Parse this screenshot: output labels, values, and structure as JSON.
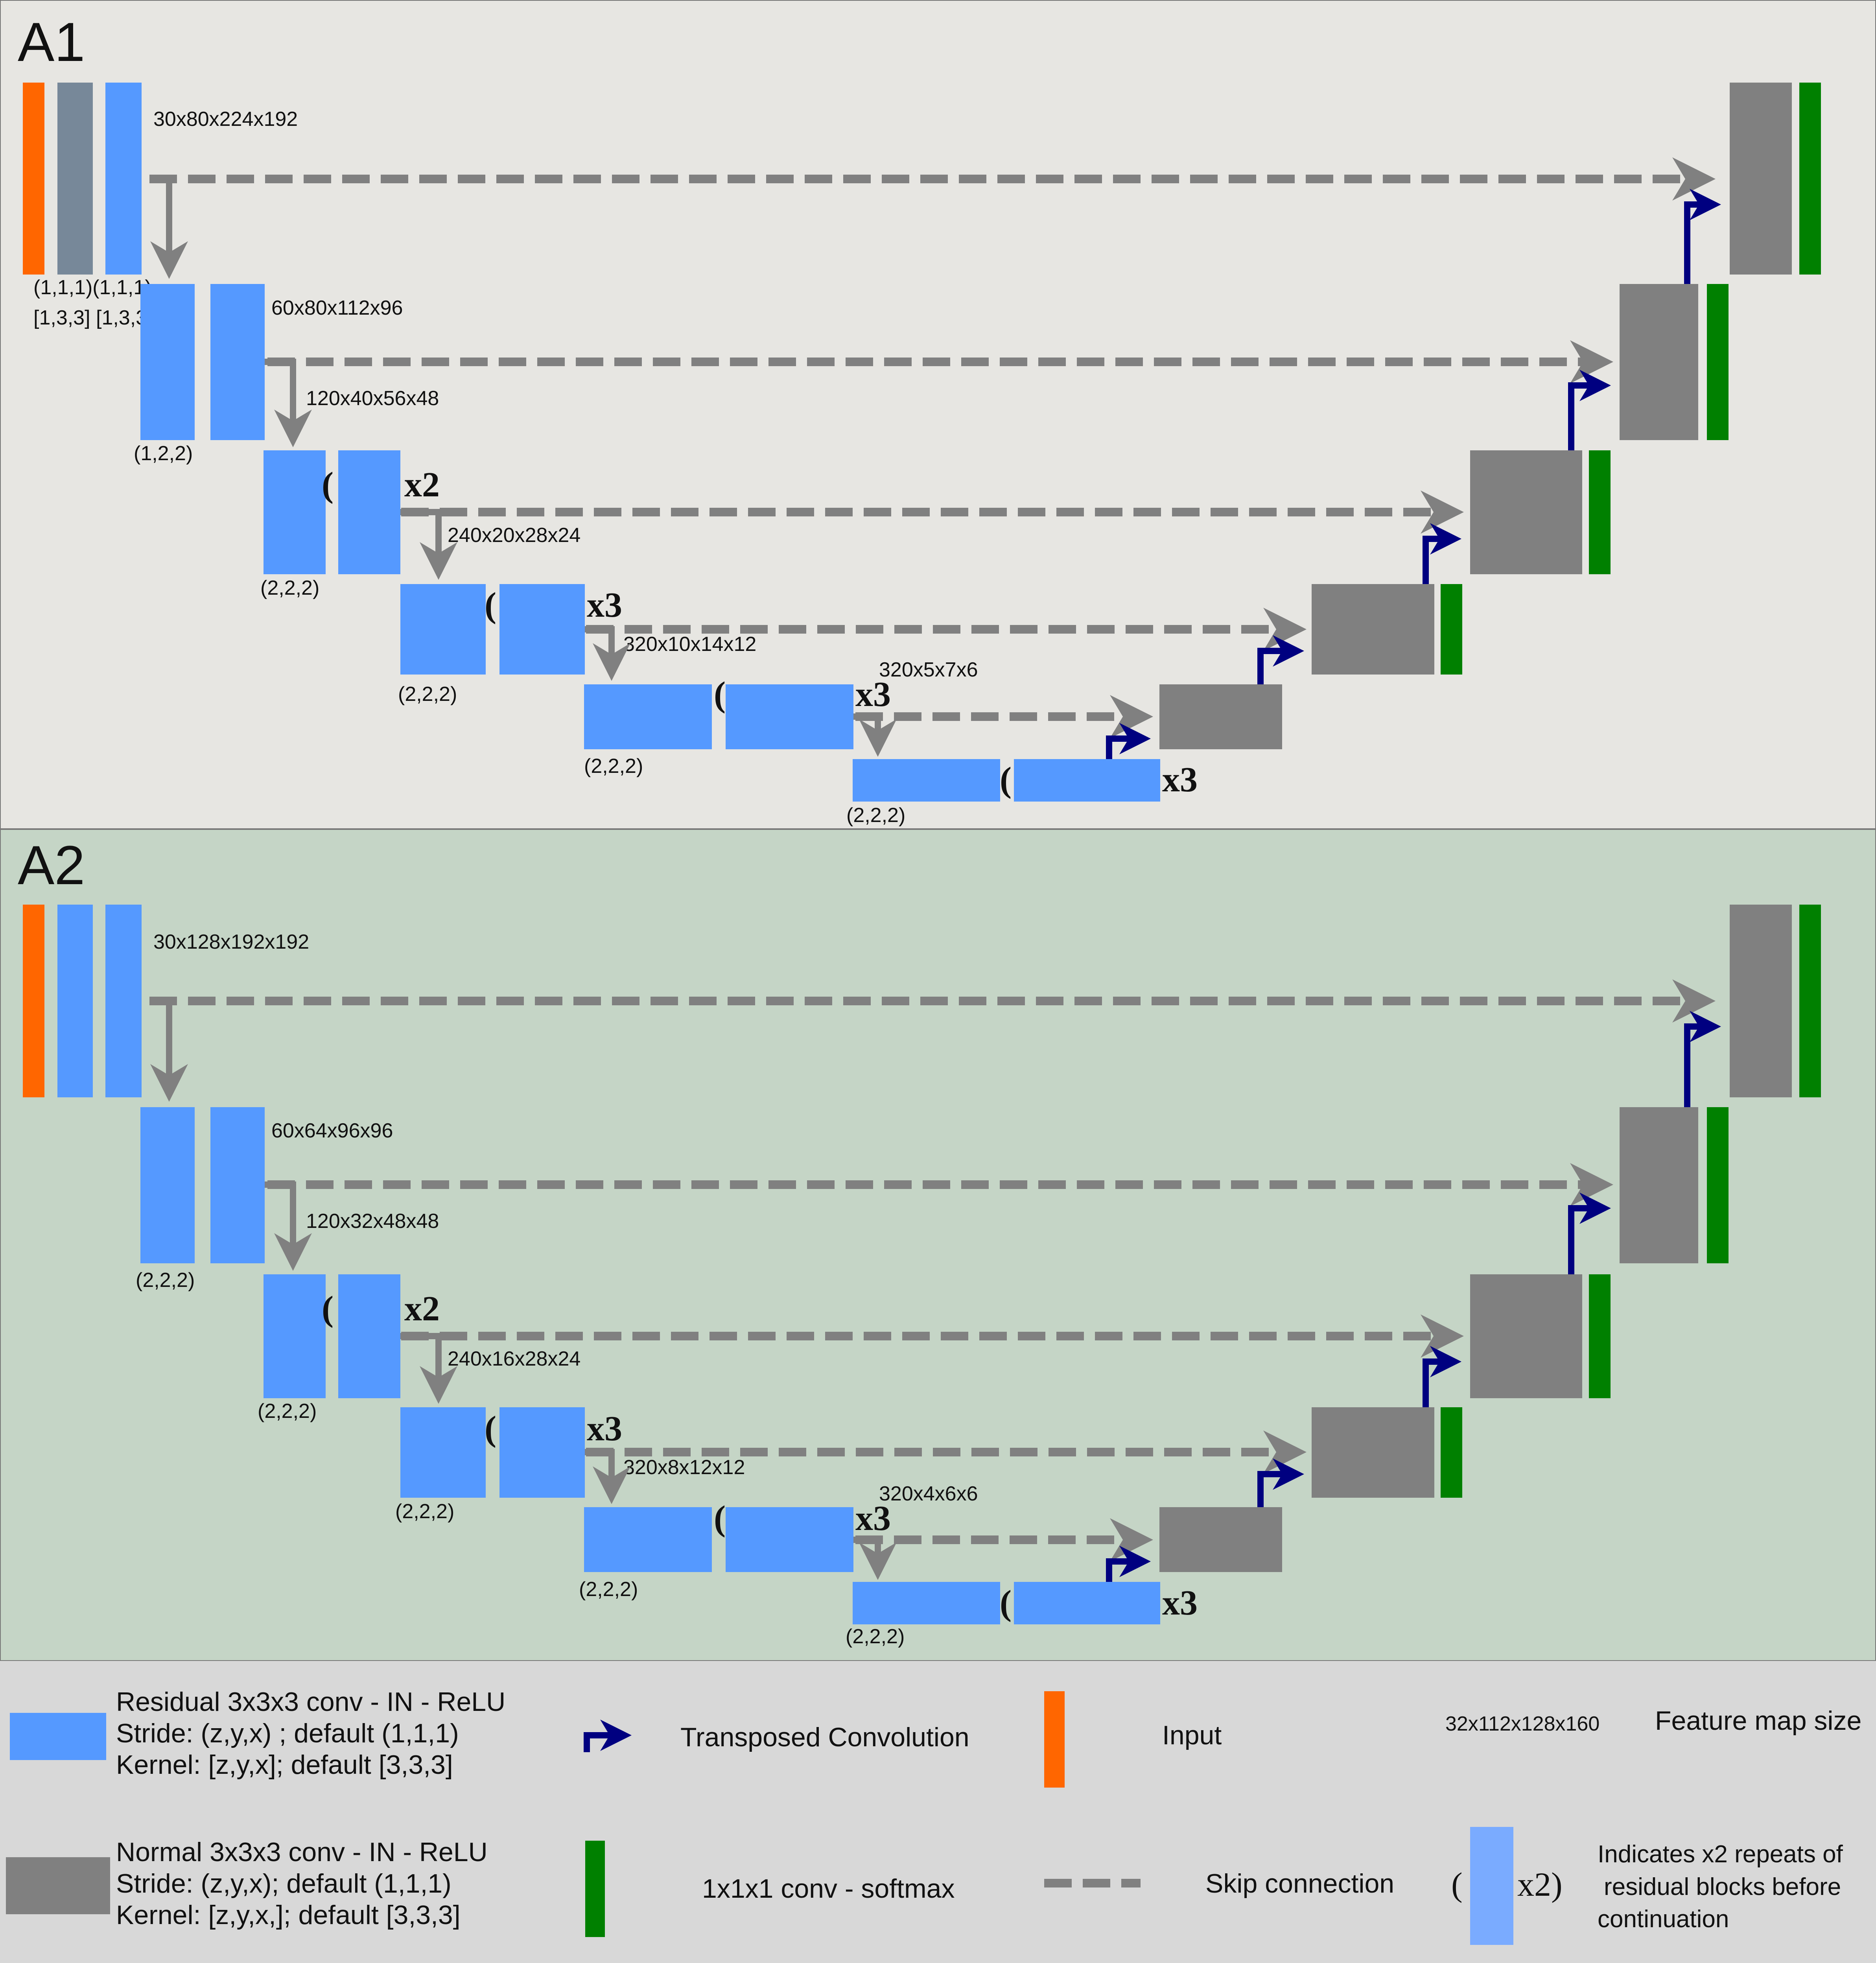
{
  "colors": {
    "residual": "#5599ff",
    "normal": "#808080",
    "input": "#ff6600",
    "softmax": "#008000",
    "transposed": "#000080",
    "skip": "#808080",
    "panel_a1": "#e7e6e2",
    "panel_a2": "#c5d5c6",
    "legend_bg": "#d8d8d8",
    "first_block_a1": "#778899"
  },
  "panels": [
    {
      "id": "A1",
      "title": "A1",
      "first_block_kind": "normal-slate",
      "feature_sizes": [
        "30x80x224x192",
        "60x80x112x96",
        "120x40x56x48",
        "240x20x28x24",
        "320x10x14x12",
        "320x5x7x6"
      ],
      "strides": [
        "(1,1,1)(1,1,1)",
        "(1,2,2)",
        "(2,2,2)",
        "(2,2,2)",
        "(2,2,2)",
        "(2,2,2)"
      ],
      "kernels": "[1,3,3] [1,3,3]",
      "repeats": [
        "x2",
        "x3",
        "x3",
        "x3"
      ]
    },
    {
      "id": "A2",
      "title": "A2",
      "first_block_kind": "residual",
      "feature_sizes": [
        "30x128x192x192",
        "60x64x96x96",
        "120x32x48x48",
        "240x16x28x24",
        "320x8x12x12",
        "320x4x6x6"
      ],
      "strides": [
        "",
        "(2,2,2)",
        "(2,2,2)",
        "(2,2,2)",
        "(2,2,2)",
        "(2,2,2)"
      ],
      "kernels": "",
      "repeats": [
        "x2",
        "x3",
        "x3",
        "x3"
      ]
    }
  ],
  "legend": {
    "residual": {
      "line1": "Residual 3x3x3 conv - IN - ReLU",
      "line2": "Stride: (z,y,x) ; default (1,1,1)",
      "line3": "Kernel: [z,y,x]; default [3,3,3]"
    },
    "normal": {
      "line1": "Normal 3x3x3 conv - IN - ReLU",
      "line2": "Stride: (z,y,x); default (1,1,1)",
      "line3": "Kernel: [z,y,x,]; default [3,3,3]"
    },
    "transposed": "Transposed Convolution",
    "input": "Input",
    "softmax": "1x1x1 conv - softmax",
    "skip": "Skip connection",
    "feature_example": "32x112x128x160",
    "feature_label": "Feature map size",
    "repeat": {
      "open": "(",
      "mark": "x2)",
      "line1": "Indicates x2 repeats of",
      "line2": "residual blocks before",
      "line3": "continuation"
    }
  }
}
